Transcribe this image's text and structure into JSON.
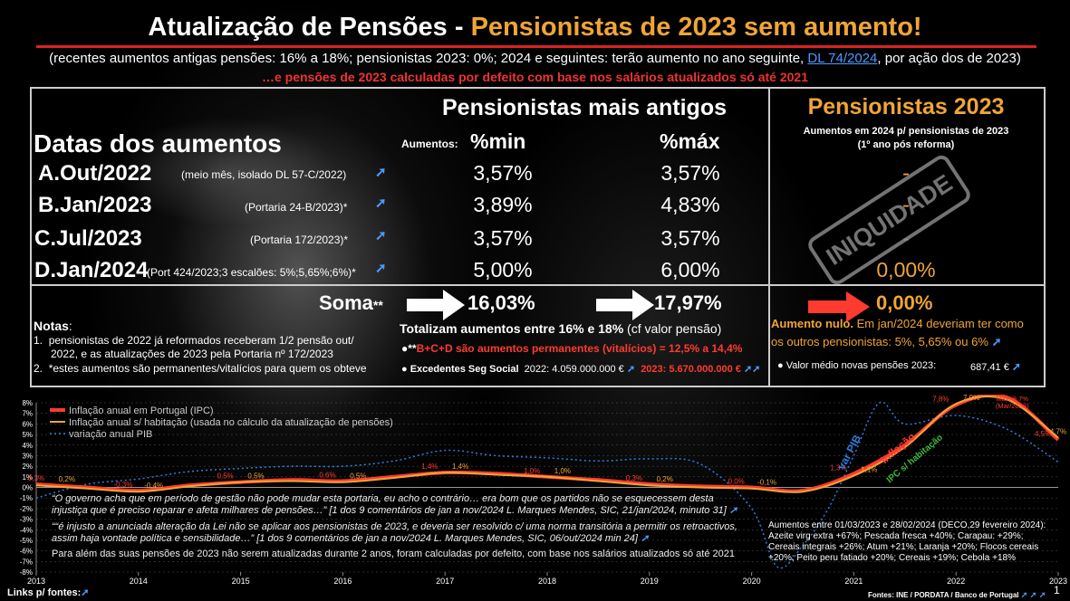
{
  "title_part1": "Atualização de Pensões - ",
  "title_part2": "Pensionistas de 2023 sem aumento!",
  "subtitle_before_link": "(recentes aumentos antigas pensões: 16% a 18%; pensionistas 2023: 0%; 2024 e seguintes: terão aumento no ano seguinte, ",
  "subtitle_link": "DL 74/2024",
  "subtitle_after_link": ", por ação dos de 2023)",
  "subtitle2": "…e pensões de 2023 calculadas por defeito com base nos salários atualizados só até 2021",
  "table": {
    "dates_header": "Datas dos aumentos",
    "old_header": "Pensionistas mais antigos",
    "increments_label": "Aumentos:",
    "min_header": "%min",
    "max_header": "%máx",
    "new_header": "Pensionistas 2023",
    "new_subheader1": "Aumentos em 2024 p/ pensionistas de 2023",
    "new_subheader2": "(1º ano pós reforma)",
    "rows": [
      {
        "label": "A.Out/2022",
        "ref": "(meio mês, isolado DL 57-C/2022)",
        "min": "3,57%",
        "max": "3,57%",
        "new": "-"
      },
      {
        "label": "B.Jan/2023",
        "ref": "(Portaria 24-B/2023)*",
        "min": "3,89%",
        "max": "4,83%",
        "new": "-"
      },
      {
        "label": "C.Jul/2023",
        "ref": "(Portaria 172/2023)*",
        "min": "3,57%",
        "max": "3,57%",
        "new": "-"
      },
      {
        "label": "D.Jan/2024",
        "ref": "(Port 424/2023;3 escalões: 5%;5,65%;6%)*",
        "min": "5,00%",
        "max": "6,00%",
        "new": "0,00%"
      }
    ],
    "stamp": "INIQUIDADE",
    "soma_label": "Soma",
    "soma_stars": "**",
    "soma_min": "16,03%",
    "soma_max": "17,97%",
    "soma_new": "0,00%",
    "total_text": "Totalizam aumentos entre 16% e 18%",
    "total_note": " (cf valor pensão)",
    "perm_stars": "**",
    "perm_text": "B+C+D são aumentos permanentes (vitalícios) = 12,5% a 14,4%",
    "surplus_label": "Excedentes Seg Social",
    "surplus_2022": "2022: 4.059.000.000 €",
    "surplus_2023": "2023:  5.670.000.000 €",
    "notes_title": "Notas",
    "note1a": "pensionistas de 2022 já reformados receberam 1/2 pensão out/",
    "note1b": "2022, e as atualizações de 2023 pela Portaria nº 172/2023",
    "note2": "*estes aumentos são permanentes/vitalícios para quem os obteve",
    "null_label": "Aumento nulo.",
    "null_text1": " Em jan/2024 deveriam ter como",
    "null_text2": "os outros pensionistas: 5%, 5,65% ou 6%",
    "avg_label": "Valor médio novas pensões 2023:",
    "avg_value": "687,41 €"
  },
  "colors": {
    "accent_orange": "#f0a535",
    "red": "#ff3b2f",
    "link_blue": "#4a9bff",
    "gdp_blue": "#2d7fe0"
  },
  "quotes": {
    "q1a": "“O governo acha que em período de gestão não pode mudar esta portaria, eu acho o contrário… era bom que os partidos não se esquecessem desta",
    "q1b": "injustiça que é preciso reparar e afeta milhares de pensões…” [1 dos 9 comentários de jan a nov/2024 L. Marques Mendes, SIC, 21/jan/2024, minuto 31]",
    "q2a": "““é injusto a anunciada alteração da Lei não se aplicar aos pensionistas de 2023, e deveria ser resolvido c/ uma norma transitória a permitir os retroactivos,",
    "q2b": "assim haja vontade política e sensibilidade…” [1 dos 9 comentários de jan a nov/2024 L. Marques Mendes, SIC, 06/out/2024 min 24]",
    "q3": "Para além das suas pensões de 2023 não serem atualizadas durante 2 anos, foram calculadas por defeito, com base nos salários atualizados só até 2021"
  },
  "prices_box": {
    "l1": "Aumentos entre 01/03/2023 e 28/02/2024 (DECO,29 fevereiro 2024):",
    "l2": "Azeite virg extra +67%; Pescada fresca +40%; Carapau: +29%;",
    "l3": "Cereais integrais +26%; Atum +21%; Laranja +20%; Flocos cereais",
    "l4": "+20%; Peito peru fatiado +20%; Cereais +19%; Cebola +18%"
  },
  "footer_links": "Links p/ fontes:",
  "footer_sources": "Fontes: INE / PORDATA / Banco de Portugal",
  "page_number": "1",
  "chart_data": {
    "type": "line",
    "x_ticks": [
      "2013",
      "2014",
      "2015",
      "2016",
      "2017",
      "2018",
      "2019",
      "2020",
      "2021",
      "2022",
      "2023"
    ],
    "y_ticks": [
      "8%",
      "7%",
      "6%",
      "5%",
      "4%",
      "3%",
      "2%",
      "1%",
      "0%",
      "-1%",
      "-2%",
      "-3%",
      "-4%",
      "-5%",
      "-6%",
      "-7%",
      "-8%"
    ],
    "ylim": [
      -8,
      8
    ],
    "xlim": [
      2013,
      2023
    ],
    "legend": [
      "Inflação anual em Portugal (IPC)",
      "Inflação anual s/ habitação (usada no cálculo da atualização de pensões)",
      "variação anual PIB"
    ],
    "series": [
      {
        "name": "Inflação anual em Portugal (IPC)",
        "color": "#ff3b2f",
        "x": [
          2013,
          2013.5,
          2014,
          2014.5,
          2015,
          2015.5,
          2016,
          2016.5,
          2017,
          2017.5,
          2018,
          2018.5,
          2019,
          2019.5,
          2020,
          2020.5,
          2021,
          2021.5,
          2022,
          2022.5,
          2023
        ],
        "y": [
          0.3,
          0.0,
          -0.3,
          0.2,
          0.5,
          0.7,
          0.6,
          1.0,
          1.4,
          1.3,
          1.0,
          0.7,
          0.3,
          0.1,
          0.0,
          -0.3,
          1.3,
          4.0,
          7.8,
          8.5,
          4.5
        ]
      },
      {
        "name": "Inflação anual s/ habitação (usada no cálculo da atualização de pensões)",
        "color": "#f0a535",
        "x": [
          2013,
          2013.5,
          2014,
          2014.5,
          2015,
          2015.5,
          2016,
          2016.5,
          2017,
          2017.5,
          2018,
          2018.5,
          2019,
          2019.5,
          2020,
          2020.5,
          2021,
          2021.5,
          2022,
          2022.5,
          2023
        ],
        "y": [
          0.2,
          -0.1,
          -0.4,
          0.1,
          0.5,
          0.6,
          0.5,
          0.9,
          1.4,
          1.2,
          1.0,
          0.6,
          0.2,
          0.0,
          -0.1,
          -0.4,
          1.1,
          3.8,
          7.9,
          8.3,
          4.7
        ]
      },
      {
        "name": "variação anual PIB",
        "color": "#2d7fe0",
        "x": [
          2013,
          2013.5,
          2014,
          2014.5,
          2015,
          2015.5,
          2016,
          2016.5,
          2017,
          2017.5,
          2018,
          2018.5,
          2019,
          2019.5,
          2020,
          2020.25,
          2020.5,
          2020.75,
          2021,
          2021.25,
          2021.5,
          2022,
          2022.5,
          2023
        ],
        "y": [
          -1.0,
          0.3,
          0.8,
          1.5,
          1.8,
          2.0,
          2.0,
          2.5,
          3.5,
          3.0,
          2.8,
          2.5,
          2.7,
          2.2,
          -2.0,
          -7.5,
          -5.5,
          -2.0,
          3.0,
          8.0,
          6.0,
          6.8,
          5.5,
          2.4
        ]
      }
    ],
    "point_labels": [
      {
        "text": "0,3%",
        "x": 2013,
        "y": 0.3,
        "color": "#ff3b2f"
      },
      {
        "text": "0,2%",
        "x": 2013.3,
        "y": 0.2,
        "color": "#f0a535"
      },
      {
        "text": "-0,3%",
        "x": 2013.85,
        "y": -0.3,
        "color": "#ff3b2f"
      },
      {
        "text": "-0,4%",
        "x": 2014.15,
        "y": -0.4,
        "color": "#f0a535"
      },
      {
        "text": "0,5%",
        "x": 2014.85,
        "y": 0.5,
        "color": "#ff3b2f"
      },
      {
        "text": "0,5%",
        "x": 2015.15,
        "y": 0.5,
        "color": "#f0a535"
      },
      {
        "text": "0,6%",
        "x": 2015.85,
        "y": 0.6,
        "color": "#ff3b2f"
      },
      {
        "text": "0,5%",
        "x": 2016.15,
        "y": 0.5,
        "color": "#f0a535"
      },
      {
        "text": "1,4%",
        "x": 2016.85,
        "y": 1.4,
        "color": "#ff3b2f"
      },
      {
        "text": "1,4%",
        "x": 2017.15,
        "y": 1.4,
        "color": "#f0a535"
      },
      {
        "text": "1,0%",
        "x": 2017.85,
        "y": 1.0,
        "color": "#ff3b2f"
      },
      {
        "text": "1,0%",
        "x": 2018.15,
        "y": 1.0,
        "color": "#f0a535"
      },
      {
        "text": "0,3%",
        "x": 2018.85,
        "y": 0.3,
        "color": "#ff3b2f"
      },
      {
        "text": "0,2%",
        "x": 2019.15,
        "y": 0.2,
        "color": "#f0a535"
      },
      {
        "text": "0,0%",
        "x": 2019.85,
        "y": 0.0,
        "color": "#ff3b2f"
      },
      {
        "text": "-0,1%",
        "x": 2020.15,
        "y": -0.1,
        "color": "#f0a535"
      },
      {
        "text": "1,3%",
        "x": 2020.85,
        "y": 1.3,
        "color": "#ff3b2f"
      },
      {
        "text": "1,1%",
        "x": 2021.15,
        "y": 1.1,
        "color": "#f0a535"
      },
      {
        "text": "7,8%",
        "x": 2021.85,
        "y": 7.8,
        "color": "#ff3b2f"
      },
      {
        "text": "7,9%",
        "x": 2022.15,
        "y": 7.9,
        "color": "#f0a535"
      },
      {
        "text": "4,5%",
        "x": 2022.85,
        "y": 4.5,
        "color": "#ff3b2f"
      },
      {
        "text": "4,7%",
        "x": 2023.0,
        "y": 4.7,
        "color": "#f0a535"
      }
    ],
    "max_annotation": {
      "line1": "Máx: 8,7%",
      "line2": "(Mar/2023)"
    },
    "line_labels": {
      "gdp": "var PIB",
      "inflation": "Inflação",
      "ipc_housing": "IPC s/ habitação"
    },
    "grid": true,
    "legend_position": "top-left"
  }
}
